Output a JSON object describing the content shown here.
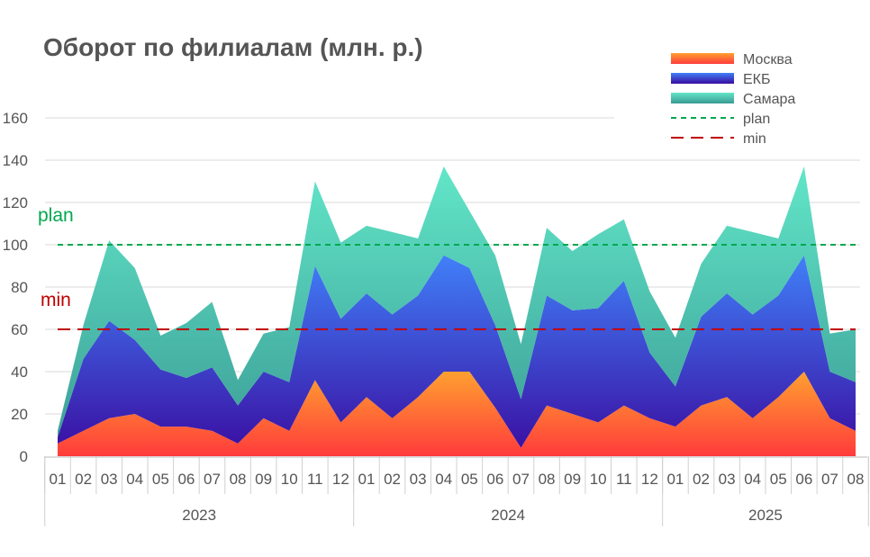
{
  "chart_data": {
    "type": "area",
    "stacked": true,
    "title": "Оборот по филиалам (млн. р.)",
    "xlabel": "",
    "ylabel": "",
    "ylim": [
      0,
      160
    ],
    "yticks": [
      0,
      20,
      40,
      60,
      80,
      100,
      120,
      140,
      160
    ],
    "grid": true,
    "legend_position": "top-right",
    "categories": [
      "01",
      "02",
      "03",
      "04",
      "05",
      "06",
      "07",
      "08",
      "09",
      "10",
      "11",
      "12",
      "01",
      "02",
      "03",
      "04",
      "05",
      "06",
      "07",
      "08",
      "09",
      "10",
      "11",
      "12",
      "01",
      "02",
      "03",
      "04",
      "05",
      "06",
      "07",
      "08"
    ],
    "groups": [
      {
        "label": "2023",
        "count": 12
      },
      {
        "label": "2024",
        "count": 12
      },
      {
        "label": "2025",
        "count": 8
      }
    ],
    "series": [
      {
        "name": "Москва",
        "colors": [
          "#ff3b3b",
          "#ffa030"
        ],
        "values": [
          6,
          12,
          18,
          20,
          14,
          14,
          12,
          6,
          18,
          12,
          36,
          16,
          28,
          18,
          28,
          40,
          40,
          23,
          4,
          24,
          20,
          16,
          24,
          18,
          14,
          24,
          28,
          18,
          28,
          40,
          18,
          12
        ]
      },
      {
        "name": "ЕКБ",
        "colors": [
          "#3a0ca0",
          "#4080f8"
        ],
        "values": [
          3,
          34,
          46,
          35,
          27,
          23,
          30,
          18,
          22,
          23,
          54,
          49,
          49,
          49,
          48,
          55,
          49,
          39,
          23,
          52,
          49,
          54,
          59,
          31,
          19,
          42,
          49,
          49,
          48,
          55,
          22,
          23
        ]
      },
      {
        "name": "Самара",
        "colors": [
          "#3a9a94",
          "#62e6c8"
        ],
        "values": [
          3,
          16,
          38,
          34,
          16,
          26,
          31,
          12,
          18,
          26,
          40,
          36,
          32,
          39,
          27,
          42,
          27,
          33,
          26,
          32,
          28,
          35,
          29,
          29,
          23,
          25,
          32,
          39,
          27,
          42,
          18,
          25
        ]
      }
    ],
    "reference_lines": [
      {
        "name": "plan",
        "value": 100,
        "color": "#00a84f",
        "style": "short-dash",
        "label": "plan"
      },
      {
        "name": "min",
        "value": 60,
        "color": "#c00000",
        "style": "long-dash",
        "label": "min"
      }
    ]
  }
}
